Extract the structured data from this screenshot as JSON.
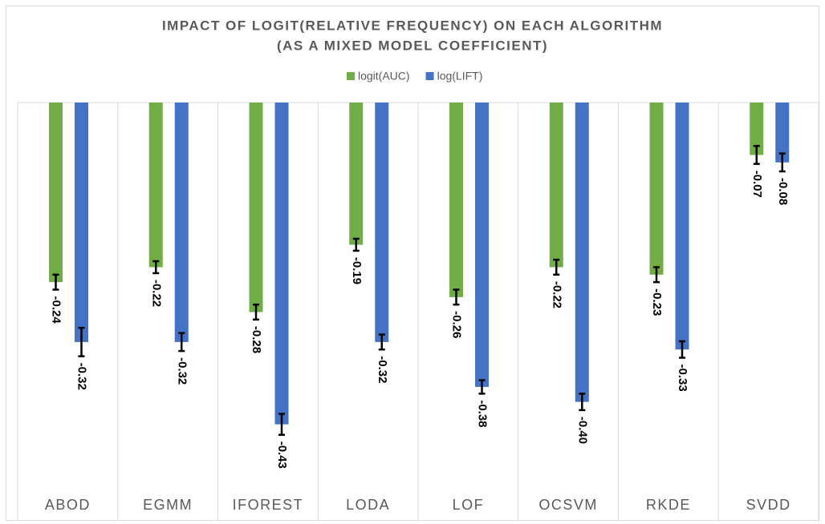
{
  "chart_data": {
    "type": "bar",
    "title": [
      "IMPACT OF LOGIT(RELATIVE FREQUENCY) ON EACH ALGORITHM",
      "(AS A MIXED MODEL COEFFICIENT)"
    ],
    "categories": [
      "ABOD",
      "EGMM",
      "IFOREST",
      "LODA",
      "LOF",
      "OCSVM",
      "RKDE",
      "SVDD"
    ],
    "series": [
      {
        "name": "logit(AUC)",
        "color": "#70ad47",
        "values": [
          -0.24,
          -0.22,
          -0.28,
          -0.19,
          -0.26,
          -0.22,
          -0.23,
          -0.07
        ],
        "value_labels": [
          "-0.24",
          "-0.22",
          "-0.28",
          "-0.19",
          "-0.26",
          "-0.22",
          "-0.23",
          "-0.07"
        ],
        "errors": [
          0.01,
          0.008,
          0.01,
          0.008,
          0.01,
          0.01,
          0.01,
          0.012
        ]
      },
      {
        "name": "log(LIFT)",
        "color": "#4472c4",
        "values": [
          -0.32,
          -0.32,
          -0.43,
          -0.32,
          -0.38,
          -0.4,
          -0.33,
          -0.08
        ],
        "value_labels": [
          "-0.32",
          "-0.32",
          "-0.43",
          "-0.32",
          "-0.38",
          "-0.40",
          "-0.33",
          "-0.08"
        ],
        "errors": [
          0.019,
          0.012,
          0.014,
          0.01,
          0.009,
          0.011,
          0.011,
          0.012
        ]
      }
    ],
    "ylim": [
      -0.5,
      0
    ],
    "legend": "top",
    "error_bars": true
  }
}
